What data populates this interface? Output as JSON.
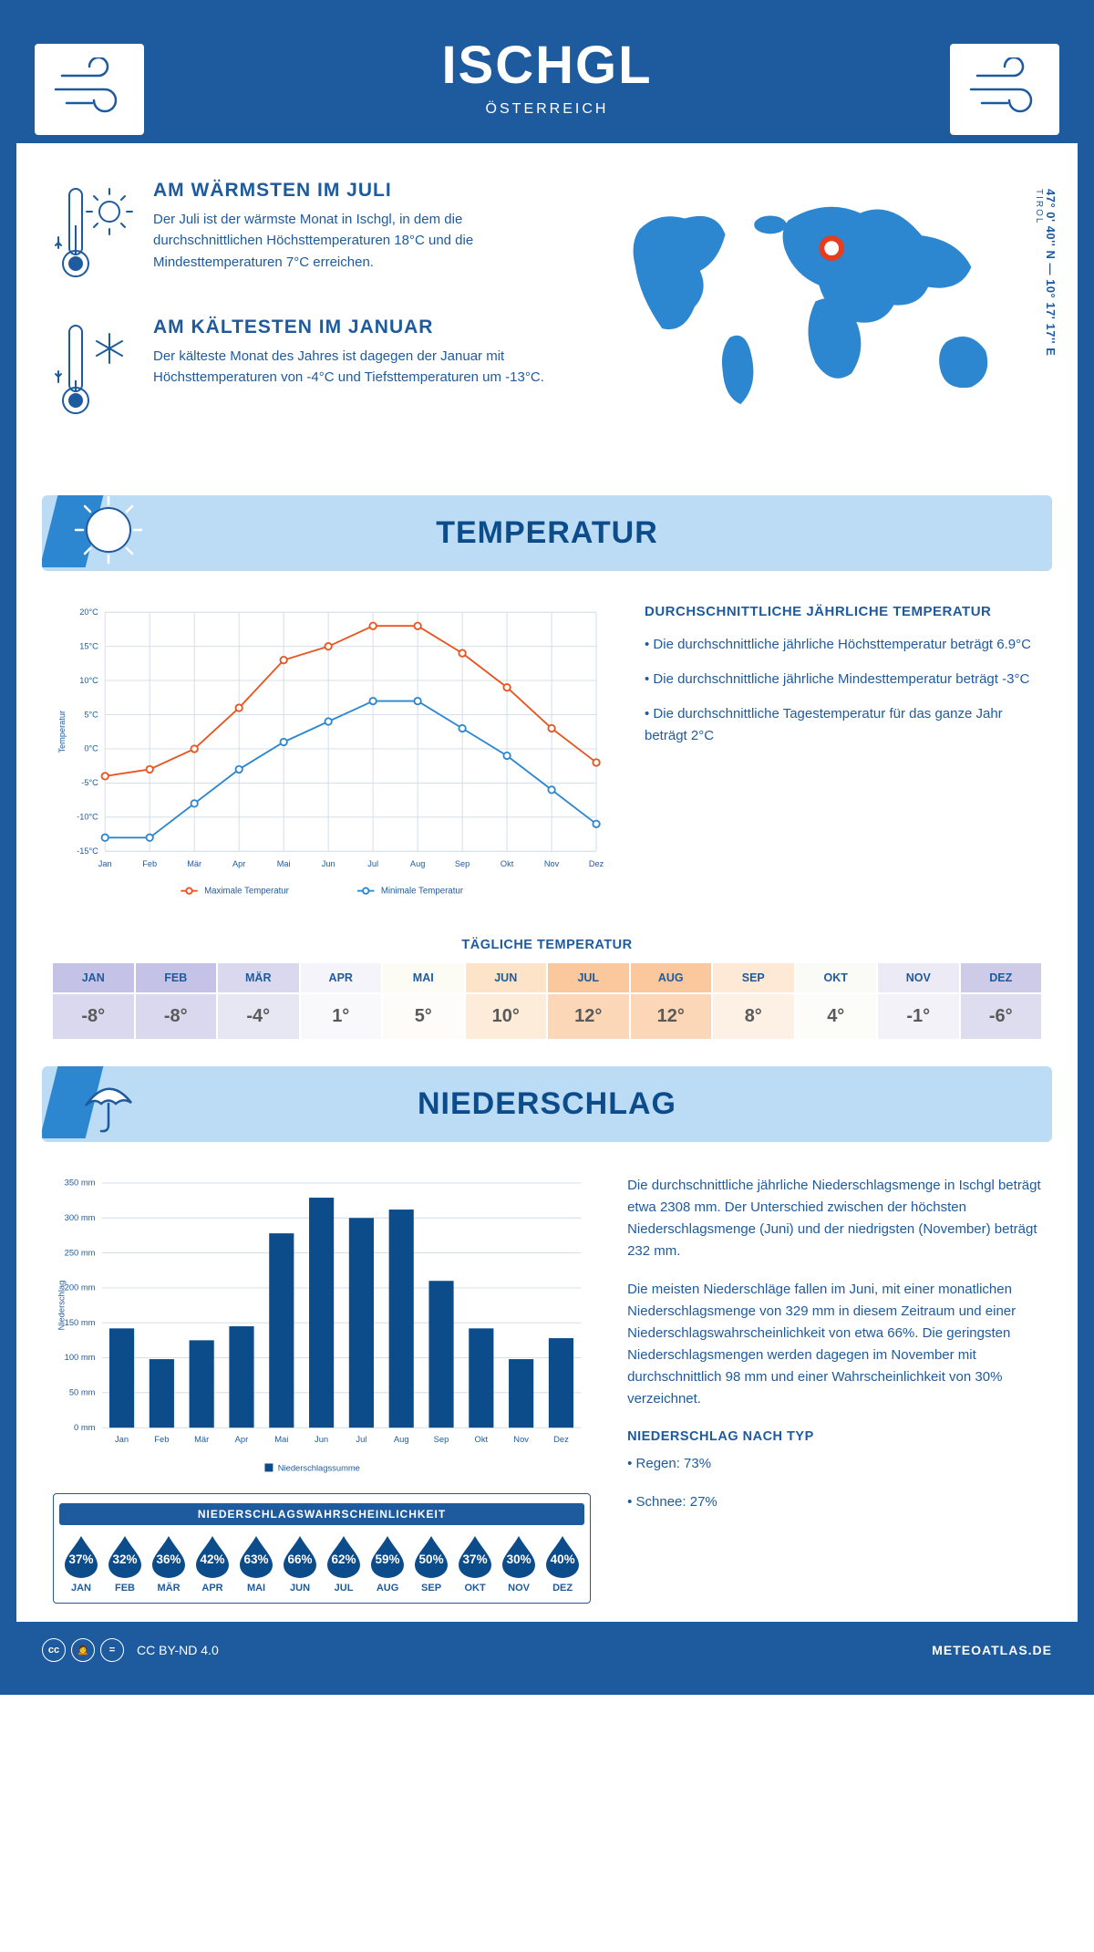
{
  "header": {
    "title": "ISCHGL",
    "subtitle": "ÖSTERREICH"
  },
  "coords": "47° 0' 40'' N — 10° 17' 17'' E",
  "region": "TIROL",
  "warm": {
    "title": "AM WÄRMSTEN IM JULI",
    "text": "Der Juli ist der wärmste Monat in Ischgl, in dem die durchschnittlichen Höchsttemperaturen 18°C und die Mindesttemperaturen 7°C erreichen."
  },
  "cold": {
    "title": "AM KÄLTESTEN IM JANUAR",
    "text": "Der kälteste Monat des Jahres ist dagegen der Januar mit Höchsttemperaturen von -4°C und Tiefsttemperaturen um -13°C."
  },
  "temp_section": {
    "title": "TEMPERATUR",
    "avg_title": "DURCHSCHNITTLICHE JÄHRLICHE TEMPERATUR",
    "bullet1": "• Die durchschnittliche jährliche Höchsttemperatur beträgt 6.9°C",
    "bullet2": "• Die durchschnittliche jährliche Mindesttemperatur beträgt -3°C",
    "bullet3": "• Die durchschnittliche Tagestemperatur für das ganze Jahr beträgt 2°C"
  },
  "temp_chart": {
    "type": "line",
    "months": [
      "Jan",
      "Feb",
      "Mär",
      "Apr",
      "Mai",
      "Jun",
      "Jul",
      "Aug",
      "Sep",
      "Okt",
      "Nov",
      "Dez"
    ],
    "max_series": {
      "label": "Maximale Temperatur",
      "color": "#e8551f",
      "values": [
        -4,
        -3,
        0,
        6,
        13,
        15,
        18,
        18,
        14,
        9,
        3,
        -2
      ]
    },
    "min_series": {
      "label": "Minimale Temperatur",
      "color": "#2d87d0",
      "values": [
        -13,
        -13,
        -8,
        -3,
        1,
        4,
        7,
        7,
        3,
        -1,
        -6,
        -11
      ]
    },
    "ylabel": "Temperatur",
    "ylim": [
      -15,
      20
    ],
    "ytick_step": 5,
    "grid_color": "#cfdce8",
    "axis_color": "#1e5a9e",
    "label_fontsize": 10,
    "marker": "circle-open",
    "line_width": 2
  },
  "daily_temp": {
    "title": "TÄGLICHE TEMPERATUR",
    "months": [
      "JAN",
      "FEB",
      "MÄR",
      "APR",
      "MAI",
      "JUN",
      "JUL",
      "AUG",
      "SEP",
      "OKT",
      "NOV",
      "DEZ"
    ],
    "values": [
      "-8°",
      "-8°",
      "-4°",
      "1°",
      "5°",
      "10°",
      "12°",
      "12°",
      "8°",
      "4°",
      "-1°",
      "-6°"
    ],
    "head_colors": [
      "#c4c2e6",
      "#c4c2e6",
      "#d9d8ee",
      "#f4f4fa",
      "#fcfbf4",
      "#fde3c8",
      "#fac89c",
      "#fac89c",
      "#fde9d5",
      "#fafaf6",
      "#ecebf5",
      "#cdcbe8"
    ],
    "body_colors": [
      "#d9d8ee",
      "#d9d8ee",
      "#e7e6f3",
      "#f9f9fc",
      "#fdfcf8",
      "#fdecda",
      "#fbd7b8",
      "#fbd7b8",
      "#fdf0e4",
      "#fcfcf9",
      "#f3f2f9",
      "#ddddef"
    ]
  },
  "precip_section": {
    "title": "NIEDERSCHLAG",
    "para1": "Die durchschnittliche jährliche Niederschlagsmenge in Ischgl beträgt etwa 2308 mm. Der Unterschied zwischen der höchsten Niederschlagsmenge (Juni) und der niedrigsten (November) beträgt 232 mm.",
    "para2": "Die meisten Niederschläge fallen im Juni, mit einer monatlichen Niederschlagsmenge von 329 mm in diesem Zeitraum und einer Niederschlagswahrscheinlichkeit von etwa 66%. Die geringsten Niederschlagsmengen werden dagegen im November mit durchschnittlich 98 mm und einer Wahrscheinlichkeit von 30% verzeichnet.",
    "type_title": "NIEDERSCHLAG NACH TYP",
    "type1": "• Regen: 73%",
    "type2": "• Schnee: 27%"
  },
  "precip_chart": {
    "type": "bar",
    "months": [
      "Jan",
      "Feb",
      "Mär",
      "Apr",
      "Mai",
      "Jun",
      "Jul",
      "Aug",
      "Sep",
      "Okt",
      "Nov",
      "Dez"
    ],
    "values": [
      142,
      98,
      125,
      145,
      278,
      329,
      300,
      312,
      210,
      142,
      98,
      128
    ],
    "bar_color": "#0d4c8b",
    "ylabel": "Niederschlag",
    "ylim": [
      0,
      350
    ],
    "ytick_step": 50,
    "grid_color": "#cfdce8",
    "axis_color": "#1e5a9e",
    "legend": "Niederschlagssumme",
    "bar_width": 0.62
  },
  "probability": {
    "title": "NIEDERSCHLAGSWAHRSCHEINLICHKEIT",
    "months": [
      "JAN",
      "FEB",
      "MÄR",
      "APR",
      "MAI",
      "JUN",
      "JUL",
      "AUG",
      "SEP",
      "OKT",
      "NOV",
      "DEZ"
    ],
    "values": [
      "37%",
      "32%",
      "36%",
      "42%",
      "63%",
      "66%",
      "62%",
      "59%",
      "50%",
      "37%",
      "30%",
      "40%"
    ],
    "drop_color": "#0d4c8b"
  },
  "footer": {
    "license": "CC BY-ND 4.0",
    "domain": "METEOATLAS.DE"
  }
}
